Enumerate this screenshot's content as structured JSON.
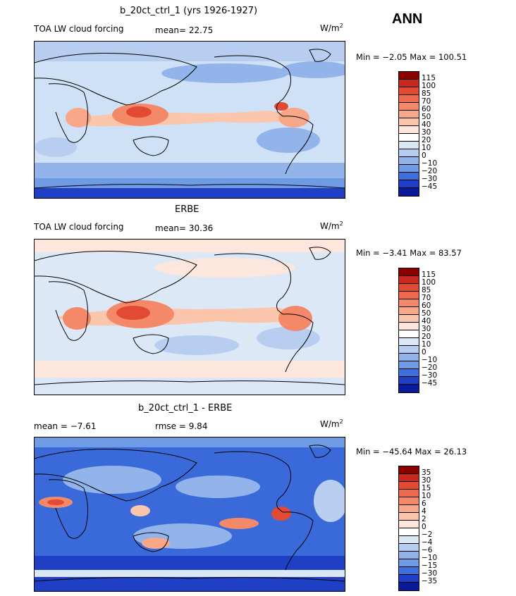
{
  "season": "ANN",
  "units_base": "W/m",
  "units_exp": "2",
  "panels": [
    {
      "title": "b_20ct_ctrl_1 (yrs 1926-1927)",
      "left_label": "TOA LW cloud forcing",
      "middle_label": "mean=  22.75",
      "minmax": "Min =  −2.05 Max = 100.51",
      "base_color": "#cfe1f6",
      "levels": [
        "115",
        "100",
        "85",
        "70",
        "60",
        "50",
        "40",
        "30",
        "20",
        "10",
        "0",
        "−10",
        "−20",
        "−30",
        "−45"
      ],
      "colors": [
        "#8b0000",
        "#c8281e",
        "#e34a33",
        "#ef6a4c",
        "#f4896a",
        "#f8a788",
        "#fbc6ac",
        "#fde6dc",
        "#ffffff",
        "#dbe7f7",
        "#b7cef0",
        "#93b4ea",
        "#6f9be4",
        "#3f6fdb",
        "#1f3fc4",
        "#0a1a9b"
      ]
    },
    {
      "title": "ERBE",
      "left_label": "TOA LW cloud forcing",
      "middle_label": "mean=  30.36",
      "minmax": "Min =  −3.41 Max =  83.57",
      "base_color": "#dde8f7",
      "levels": [
        "115",
        "100",
        "85",
        "70",
        "60",
        "50",
        "40",
        "30",
        "20",
        "10",
        "0",
        "−10",
        "−20",
        "−30",
        "−45"
      ],
      "colors": [
        "#8b0000",
        "#c8281e",
        "#e34a33",
        "#ef6a4c",
        "#f4896a",
        "#f8a788",
        "#fbc6ac",
        "#fde6dc",
        "#ffffff",
        "#dbe7f7",
        "#b7cef0",
        "#93b4ea",
        "#6f9be4",
        "#3f6fdb",
        "#1f3fc4",
        "#0a1a9b"
      ]
    },
    {
      "title": "b_20ct_ctrl_1 - ERBE",
      "left_label": "mean =  −7.61",
      "middle_label": "rmse =   9.84",
      "minmax": "Min = −45.64 Max =  26.13",
      "base_color": "#3a6ad9",
      "levels": [
        "35",
        "30",
        "15",
        "10",
        "6",
        "4",
        "2",
        "0",
        "−2",
        "−4",
        "−6",
        "−10",
        "−15",
        "−30",
        "−35"
      ],
      "colors": [
        "#8b0000",
        "#c8281e",
        "#e34a33",
        "#ef6a4c",
        "#f4896a",
        "#f8a788",
        "#fbc6ac",
        "#fde6dc",
        "#ffffff",
        "#dbe7f7",
        "#b7cef0",
        "#93b4ea",
        "#6f9be4",
        "#3f6fdb",
        "#1f3fc4",
        "#0a1a9b"
      ]
    }
  ]
}
